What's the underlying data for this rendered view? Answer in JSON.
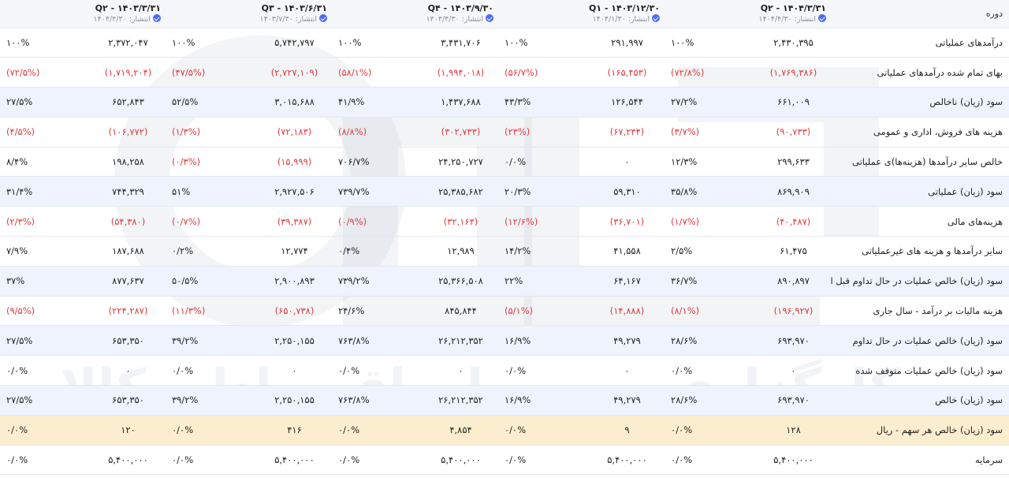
{
  "header": {
    "label": "دوره",
    "periods": [
      {
        "title": "Q۲ - ۱۴۰۴/۳/۳۱",
        "published_label": "انتشار:",
        "published_date": "۱۴۰۴/۴/۳۰"
      },
      {
        "title": "Q۱ - ۱۴۰۳/۱۲/۳۰",
        "published_label": "انتشار:",
        "published_date": "۱۴۰۴/۱/۳۰"
      },
      {
        "title": "Q۴ - ۱۴۰۳/۹/۳۰",
        "published_label": "انتشار:",
        "published_date": "۱۴۰۴/۴/۳۰"
      },
      {
        "title": "Q۳ - ۱۴۰۳/۶/۳۱",
        "published_label": "انتشار:",
        "published_date": "۱۴۰۳/۷/۳۰"
      },
      {
        "title": "Q۲ - ۱۴۰۳/۳/۳۱",
        "published_label": "انتشار:",
        "published_date": "۱۴۰۴/۴/۳۰"
      }
    ]
  },
  "rows": [
    {
      "label": "درآمدهای عملیاتی",
      "style": "",
      "cells": [
        {
          "v": "۲,۴۳۰,۳۹۵",
          "p": "۱۰۰%",
          "neg": false
        },
        {
          "v": "۲۹۱,۹۹۷",
          "p": "۱۰۰%",
          "neg": false
        },
        {
          "v": "۳,۴۳۱,۷۰۶",
          "p": "۱۰۰%",
          "neg": false
        },
        {
          "v": "۵,۷۴۲,۷۹۷",
          "p": "۱۰۰%",
          "neg": false
        },
        {
          "v": "۲,۳۷۲,۰۴۷",
          "p": "۱۰۰%",
          "neg": false
        }
      ]
    },
    {
      "label": "بهای تمام شده درآمدهای عملیاتی",
      "style": "",
      "cells": [
        {
          "v": "(۱,۷۶۹,۳۸۶)",
          "p": "(۷۲/۸%)",
          "neg": true
        },
        {
          "v": "(۱۶۵,۴۵۳)",
          "p": "(۵۶/۷%)",
          "neg": true
        },
        {
          "v": "(۱,۹۹۴,۰۱۸)",
          "p": "(۵۸/۱%)",
          "neg": true
        },
        {
          "v": "(۲,۷۲۷,۱۰۹)",
          "p": "(۴۷/۵%)",
          "neg": true
        },
        {
          "v": "(۱,۷۱۹,۲۰۴)",
          "p": "(۷۲/۵%)",
          "neg": true
        }
      ]
    },
    {
      "label": "سود (زیان) ناخالص",
      "style": "shade",
      "cells": [
        {
          "v": "۶۶۱,۰۰۹",
          "p": "۲۷/۲%",
          "neg": false
        },
        {
          "v": "۱۲۶,۵۴۴",
          "p": "۴۳/۳%",
          "neg": false
        },
        {
          "v": "۱,۴۳۷,۶۸۸",
          "p": "۴۱/۹%",
          "neg": false
        },
        {
          "v": "۳,۰۱۵,۶۸۸",
          "p": "۵۲/۵%",
          "neg": false
        },
        {
          "v": "۶۵۲,۸۴۳",
          "p": "۲۷/۵%",
          "neg": false
        }
      ]
    },
    {
      "label": "هزینه های فروش، اداری و عمومی",
      "style": "",
      "cells": [
        {
          "v": "(۹۰,۷۳۳)",
          "p": "(۳/۷%)",
          "neg": true
        },
        {
          "v": "(۶۷,۲۳۴)",
          "p": "(۲۳%)",
          "neg": true
        },
        {
          "v": "(۳۰۲,۷۳۳)",
          "p": "(۸/۸%)",
          "neg": true
        },
        {
          "v": "(۷۲,۱۸۳)",
          "p": "(۱/۳%)",
          "neg": true
        },
        {
          "v": "(۱۰۶,۷۷۲)",
          "p": "(۴/۵%)",
          "neg": true
        }
      ]
    },
    {
      "label": "خالص سایر درآمدها (هزینه‌ها)ی عملیاتی",
      "style": "",
      "cells": [
        {
          "v": "۲۹۹,۶۳۳",
          "p": "۱۲/۳%",
          "neg": false
        },
        {
          "v": "۰",
          "p": "۰/۰%",
          "neg": false
        },
        {
          "v": "۲۴,۲۵۰,۷۲۷",
          "p": "۷۰۶/۷%",
          "neg": false
        },
        {
          "v": "(۱۵,۹۹۹)",
          "p": "(۰/۳%)",
          "neg": true
        },
        {
          "v": "۱۹۸,۲۵۸",
          "p": "۸/۴%",
          "neg": false
        }
      ]
    },
    {
      "label": "سود (زیان) عملیاتی",
      "style": "shade",
      "cells": [
        {
          "v": "۸۶۹,۹۰۹",
          "p": "۳۵/۸%",
          "neg": false
        },
        {
          "v": "۵۹,۳۱۰",
          "p": "۲۰/۳%",
          "neg": false
        },
        {
          "v": "۲۵,۳۸۵,۶۸۲",
          "p": "۷۳۹/۷%",
          "neg": false
        },
        {
          "v": "۲,۹۲۷,۵۰۶",
          "p": "۵۱%",
          "neg": false
        },
        {
          "v": "۷۴۴,۳۲۹",
          "p": "۳۱/۴%",
          "neg": false
        }
      ]
    },
    {
      "label": "هزینه‌های مالی",
      "style": "",
      "cells": [
        {
          "v": "(۴۰,۴۸۷)",
          "p": "(۱/۷%)",
          "neg": true
        },
        {
          "v": "(۳۶,۷۰۱)",
          "p": "(۱۲/۶%)",
          "neg": true
        },
        {
          "v": "(۳۲,۱۶۳)",
          "p": "(۰/۹%)",
          "neg": true
        },
        {
          "v": "(۳۹,۳۸۷)",
          "p": "(۰/۷%)",
          "neg": true
        },
        {
          "v": "(۵۴,۳۸۰)",
          "p": "(۲/۳%)",
          "neg": true
        }
      ]
    },
    {
      "label": "سایر درآمدها و هزینه های غیرعملیاتی",
      "style": "",
      "cells": [
        {
          "v": "۶۱,۴۷۵",
          "p": "۲/۵%",
          "neg": false
        },
        {
          "v": "۴۱,۵۵۸",
          "p": "۱۴/۲%",
          "neg": false
        },
        {
          "v": "۱۲,۹۸۹",
          "p": "۰/۴%",
          "neg": false
        },
        {
          "v": "۱۲,۷۷۴",
          "p": "۰/۲%",
          "neg": false
        },
        {
          "v": "۱۸۷,۶۸۸",
          "p": "۷/۹%",
          "neg": false
        }
      ]
    },
    {
      "label": "سود (زیان) خالص عملیات در حال تداوم قبل از مالیات",
      "style": "shade",
      "cells": [
        {
          "v": "۸۹۰,۸۹۷",
          "p": "۳۶/۷%",
          "neg": false
        },
        {
          "v": "۶۴,۱۶۷",
          "p": "۲۲%",
          "neg": false
        },
        {
          "v": "۲۵,۳۶۶,۵۰۸",
          "p": "۷۳۹/۲%",
          "neg": false
        },
        {
          "v": "۲,۹۰۰,۸۹۳",
          "p": "۵۰/۵%",
          "neg": false
        },
        {
          "v": "۸۷۷,۶۳۷",
          "p": "۳۷%",
          "neg": false
        }
      ]
    },
    {
      "label": "هزینه مالیات بر درآمد - سال جاری",
      "style": "",
      "cells": [
        {
          "v": "(۱۹۶,۹۲۷)",
          "p": "(۸/۱%)",
          "neg": true
        },
        {
          "v": "(۱۴,۸۸۸)",
          "p": "(۵/۱%)",
          "neg": true
        },
        {
          "v": "۸۴۵,۸۴۴",
          "p": "۲۴/۶%",
          "neg": false
        },
        {
          "v": "(۶۵۰,۷۳۸)",
          "p": "(۱۱/۳%)",
          "neg": true
        },
        {
          "v": "(۲۲۴,۲۸۷)",
          "p": "(۹/۵%)",
          "neg": true
        }
      ]
    },
    {
      "label": "سود (زیان) خالص عملیات در حال تداوم",
      "style": "shade",
      "cells": [
        {
          "v": "۶۹۳,۹۷۰",
          "p": "۲۸/۶%",
          "neg": false
        },
        {
          "v": "۴۹,۲۷۹",
          "p": "۱۶/۹%",
          "neg": false
        },
        {
          "v": "۲۶,۲۱۲,۳۵۲",
          "p": "۷۶۳/۸%",
          "neg": false
        },
        {
          "v": "۲,۲۵۰,۱۵۵",
          "p": "۳۹/۲%",
          "neg": false
        },
        {
          "v": "۶۵۳,۳۵۰",
          "p": "۲۷/۵%",
          "neg": false
        }
      ]
    },
    {
      "label": "سود (زیان) خالص عملیات متوقف شده",
      "style": "",
      "cells": [
        {
          "v": "۰",
          "p": "۰/۰%",
          "neg": false
        },
        {
          "v": "۰",
          "p": "۰/۰%",
          "neg": false
        },
        {
          "v": "۰",
          "p": "۰/۰%",
          "neg": false
        },
        {
          "v": "۰",
          "p": "۰/۰%",
          "neg": false
        },
        {
          "v": "۰",
          "p": "۰/۰%",
          "neg": false
        }
      ]
    },
    {
      "label": "سود (زیان) خالص",
      "style": "shade",
      "cells": [
        {
          "v": "۶۹۳,۹۷۰",
          "p": "۲۸/۶%",
          "neg": false
        },
        {
          "v": "۴۹,۲۷۹",
          "p": "۱۶/۹%",
          "neg": false
        },
        {
          "v": "۲۶,۲۱۲,۳۵۲",
          "p": "۷۶۳/۸%",
          "neg": false
        },
        {
          "v": "۲,۲۵۰,۱۵۵",
          "p": "۳۹/۲%",
          "neg": false
        },
        {
          "v": "۶۵۳,۳۵۰",
          "p": "۲۷/۵%",
          "neg": false
        }
      ]
    },
    {
      "label": "سود (زیان) خالص هر سهم - ریال",
      "style": "hl",
      "cells": [
        {
          "v": "۱۲۸",
          "p": "۰/۰%",
          "neg": false
        },
        {
          "v": "۹",
          "p": "۰/۰%",
          "neg": false
        },
        {
          "v": "۴,۸۵۴",
          "p": "۰/۰%",
          "neg": false
        },
        {
          "v": "۴۱۶",
          "p": "۰/۰%",
          "neg": false
        },
        {
          "v": "۱۲۰",
          "p": "۰/۰%",
          "neg": false
        }
      ]
    },
    {
      "label": "سرمایه",
      "style": "",
      "cells": [
        {
          "v": "۵,۴۰۰,۰۰۰",
          "p": "۰/۰%",
          "neg": false
        },
        {
          "v": "۵,۴۰۰,۰۰۰",
          "p": "۰/۰%",
          "neg": false
        },
        {
          "v": "۵,۴۰۰,۰۰۰",
          "p": "۰/۰%",
          "neg": false
        },
        {
          "v": "۵,۴۰۰,۰۰۰",
          "p": "۰/۰%",
          "neg": false
        },
        {
          "v": "۵,۴۰۰,۰۰۰",
          "p": "۰/۰%",
          "neg": false
        }
      ]
    }
  ],
  "watermark": {
    "text": "کارگزاری بورس اوراق بهادار، کالا و انرژی"
  },
  "colors": {
    "negative": "#e0393e",
    "row_shade": "#eef3fd",
    "row_highlight": "#fbeecf",
    "verified_icon": "#4a6cf7"
  }
}
